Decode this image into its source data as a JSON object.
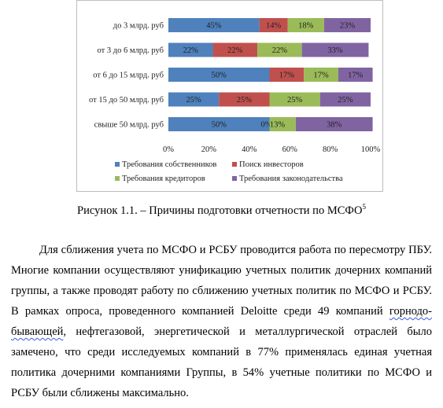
{
  "chart_data": {
    "type": "bar",
    "stacked": true,
    "orientation": "horizontal",
    "percent_stacked": true,
    "categories": [
      "до 3 млрд. руб",
      "от 3 до 6 млрд. руб",
      "от 6 до 15 млрд. руб",
      "от 15 до 50 млрд. руб",
      "свыше 50 млрд. руб"
    ],
    "series": [
      {
        "name": "Требования собственников",
        "color": "#4f81bd",
        "values": [
          45,
          22,
          50,
          25,
          50
        ],
        "labels": [
          "45%",
          "22%",
          "50%",
          "25%",
          "50%"
        ]
      },
      {
        "name": "Поиск инвесторов",
        "color": "#c0504d",
        "values": [
          14,
          22,
          17,
          25,
          0
        ],
        "labels": [
          "14%",
          "22%",
          "17%",
          "25%",
          "0%"
        ]
      },
      {
        "name": "Требования кредиторов",
        "color": "#9bbb59",
        "values": [
          18,
          22,
          17,
          25,
          13
        ],
        "labels": [
          "18%",
          "22%",
          "17%",
          "25%",
          "13%"
        ]
      },
      {
        "name": "Требования законодательства",
        "color": "#8064a2",
        "values": [
          23,
          33,
          17,
          25,
          38
        ],
        "labels": [
          "23%",
          "33%",
          "17%",
          "25%",
          "38%"
        ]
      }
    ],
    "xlim": [
      0,
      100
    ],
    "x_ticks": [
      "0%",
      "20%",
      "40%",
      "60%",
      "80%",
      "100%"
    ],
    "grid": false,
    "legend_position": "bottom"
  },
  "caption": {
    "text": "Рисунок 1.1. – Причины подготовки отчетности по МСФО",
    "footnote": "5"
  },
  "body": {
    "part1": "Для сближения учета по МСФО и РСБУ проводится работа по пересмотру ПБУ. Многие компании осуществляют унификацию учетных политик дочерних компаний группы, а также проводят работу по сближению учетных политик по МСФО и РСБУ. В рамках опроса, проведенного компанией Deloitte среди 49 компаний ",
    "misspelled": "горнодо-бывающей",
    "part2": ", нефтегазовой, энергетической и металлургической отраслей было замечено, что среди исследуемых компаний в 77% применялась единая учетная политика дочерними компаниями Группы, в 54% учетные политики по МСФО и РСБУ были сближены максимально."
  }
}
